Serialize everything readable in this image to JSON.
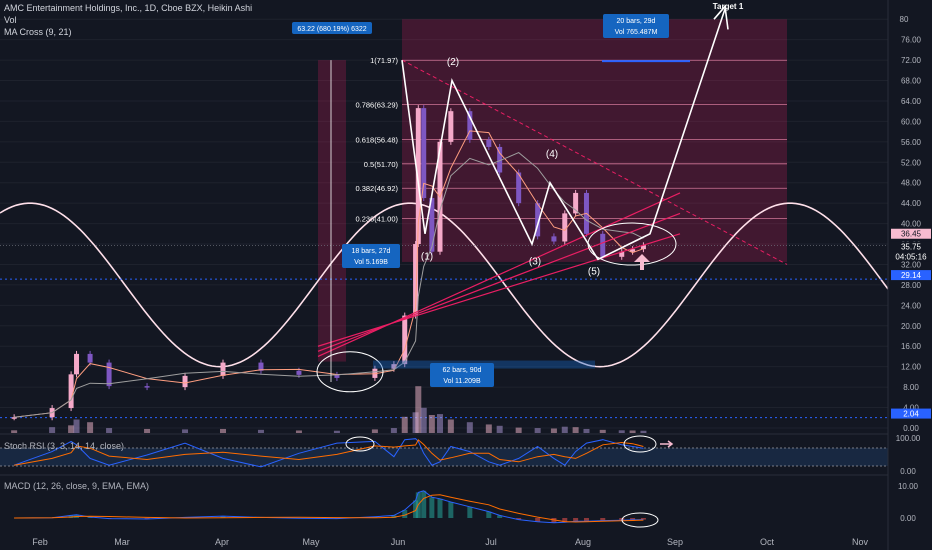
{
  "header": {
    "title_line": "AMC Entertainment Holdings, Inc., 1D, Cboe BZX, Heikin Ashi",
    "vol_label": "Vol",
    "ma_label": "MA Cross (9, 21)",
    "stoch_label": "Stoch RSI (3, 3, 14, 14, close)",
    "macd_label": "MACD (12, 26, close, 9, EMA, EMA)"
  },
  "colors": {
    "background": "#131722",
    "up": "#f5a9c9",
    "down": "#7e57c2",
    "ma_fast": "#ff9e80",
    "ma_slow": "#9e9e9e",
    "zone": "#e91e63",
    "fib_line": "#f48fb1",
    "blue_badge": "#1565c0",
    "white": "#ffffff"
  },
  "chart_data": [
    {
      "type": "line",
      "title": "AMC Entertainment Holdings, Inc., 1D, Cboe BZX, Heikin Ashi",
      "x_labels": [
        "Feb",
        "Mar",
        "Apr",
        "May",
        "Jun",
        "Jul",
        "Aug",
        "Sep",
        "Oct",
        "Nov"
      ],
      "y_ticks": [
        0,
        4,
        8,
        12,
        16,
        20,
        24,
        28,
        32,
        36,
        40,
        44,
        48,
        52,
        56,
        60,
        64,
        68,
        72,
        76,
        80
      ],
      "ylim": [
        0,
        80
      ],
      "series": [
        {
          "name": "Heikin Ashi close",
          "x": [
            "2021-01-04",
            "2021-01-18",
            "2021-01-25",
            "2021-01-27",
            "2021-02-01",
            "2021-02-08",
            "2021-02-22",
            "2021-03-08",
            "2021-03-22",
            "2021-04-05",
            "2021-04-19",
            "2021-05-03",
            "2021-05-17",
            "2021-05-24",
            "2021-05-28",
            "2021-06-01",
            "2021-06-02",
            "2021-06-04",
            "2021-06-07",
            "2021-06-10",
            "2021-06-14",
            "2021-06-21",
            "2021-06-28",
            "2021-07-02",
            "2021-07-09",
            "2021-07-16",
            "2021-07-22",
            "2021-07-26",
            "2021-07-30",
            "2021-08-03",
            "2021-08-09",
            "2021-08-16",
            "2021-08-20",
            "2021-08-24"
          ],
          "values": [
            2.1,
            3.9,
            10.5,
            14.5,
            12.8,
            8.2,
            8.0,
            10.2,
            12.8,
            11.2,
            10.4,
            9.8,
            11.6,
            12.5,
            22.0,
            36.0,
            62.6,
            45.0,
            34.5,
            56.0,
            62.0,
            56.4,
            55.0,
            50.0,
            44.0,
            37.5,
            36.5,
            42.0,
            46.0,
            38.0,
            33.5,
            34.5,
            35.0,
            35.75
          ]
        }
      ],
      "volume": [
        30,
        65,
        85,
        150,
        120,
        55,
        45,
        40,
        45,
        35,
        28,
        25,
        40,
        55,
        180,
        230,
        520,
        280,
        200,
        210,
        150,
        120,
        95,
        80,
        60,
        55,
        50,
        70,
        65,
        45,
        35,
        30,
        28,
        25
      ],
      "stoch_rsi": [
        20,
        60,
        90,
        80,
        40,
        20,
        50,
        85,
        40,
        15,
        55,
        85,
        90,
        45,
        95,
        98,
        90,
        55,
        20,
        30,
        75,
        60,
        30,
        20,
        40,
        75,
        40,
        20,
        60,
        85,
        95,
        80,
        75,
        70
      ],
      "macd": [
        0,
        0.1,
        0.8,
        1.0,
        0.3,
        -0.2,
        -0.3,
        0.2,
        0.6,
        0.2,
        -0.1,
        -0.2,
        0.4,
        0.8,
        2.5,
        5.5,
        8.0,
        8.5,
        6.5,
        6.0,
        5.0,
        3.5,
        2.0,
        0.8,
        -0.5,
        -1.2,
        -1.5,
        -1.3,
        -1.0,
        -1.0,
        -0.8,
        -0.7,
        -0.6,
        -0.5
      ],
      "macd_ticks": [
        10,
        0
      ],
      "stoch_ticks": [
        100,
        0
      ],
      "horizontal_levels": [
        29.14,
        2.04
      ],
      "price_labels": {
        "last": "36.45",
        "current": "35.75",
        "countdown": "04:05:16",
        "level_high": "29.14",
        "level_low": "2.04"
      },
      "fib_levels": [
        {
          "label": "1(71.97)",
          "value": 71.97
        },
        {
          "label": "0.786(63.29)",
          "value": 63.29
        },
        {
          "label": "0.618(56.48)",
          "value": 56.48
        },
        {
          "label": "0.5(51.70)",
          "value": 51.7
        },
        {
          "label": "0.382(46.92)",
          "value": 46.92
        },
        {
          "label": "0.236(41.00)",
          "value": 41.0
        }
      ],
      "wave_labels": [
        "(1)",
        "(2)",
        "(3)",
        "(4)",
        "(5)"
      ],
      "target_label": "Target 1",
      "measurements": [
        {
          "line1": "63.22 (680.19%) 6322",
          "line2": ""
        },
        {
          "line1": "18 bars, 27d",
          "line2": "Vol 5.169B"
        },
        {
          "line1": "62 bars, 90d",
          "line2": "Vol 11.209B"
        },
        {
          "line1": "20 bars, 29d",
          "line2": "Vol 765.487M"
        }
      ]
    }
  ]
}
